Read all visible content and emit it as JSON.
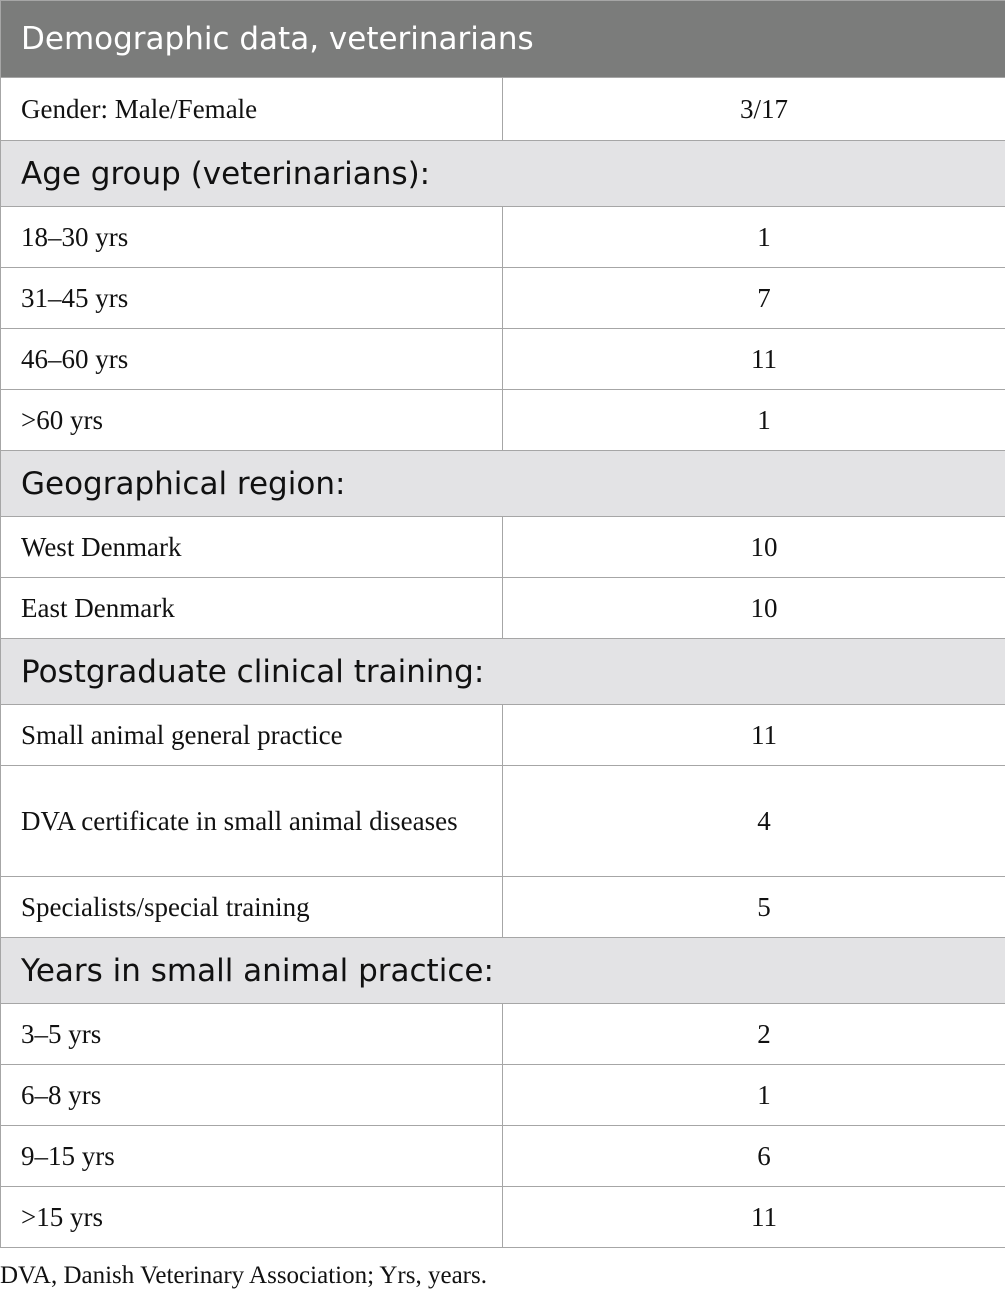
{
  "title": "Demographic data, veterinarians",
  "gender": {
    "label": "Gender: Male/Female",
    "value": "3/17"
  },
  "sections": [
    {
      "heading": "Age group (veterinarians):",
      "rows": [
        {
          "label": "18–30 yrs",
          "value": "1"
        },
        {
          "label": "31–45 yrs",
          "value": "7"
        },
        {
          "label": "46–60 yrs",
          "value": "11"
        },
        {
          "label": ">60 yrs",
          "value": "1"
        }
      ]
    },
    {
      "heading": "Geographical region:",
      "rows": [
        {
          "label": "West Denmark",
          "value": "10"
        },
        {
          "label": "East Denmark",
          "value": "10"
        }
      ]
    },
    {
      "heading": "Postgraduate clinical training:",
      "rows": [
        {
          "label": "Small animal general practice",
          "value": "11"
        },
        {
          "label": "DVA certificate in small animal diseases",
          "value": "4"
        },
        {
          "label": "Specialists/special training",
          "value": "5"
        }
      ]
    },
    {
      "heading": "Years in small animal practice:",
      "rows": [
        {
          "label": "3–5 yrs",
          "value": "2"
        },
        {
          "label": "6–8 yrs",
          "value": "1"
        },
        {
          "label": "9–15 yrs",
          "value": "6"
        },
        {
          "label": ">15 yrs",
          "value": "11"
        }
      ]
    }
  ],
  "footnote": "DVA, Danish Veterinary Association; Yrs, years."
}
